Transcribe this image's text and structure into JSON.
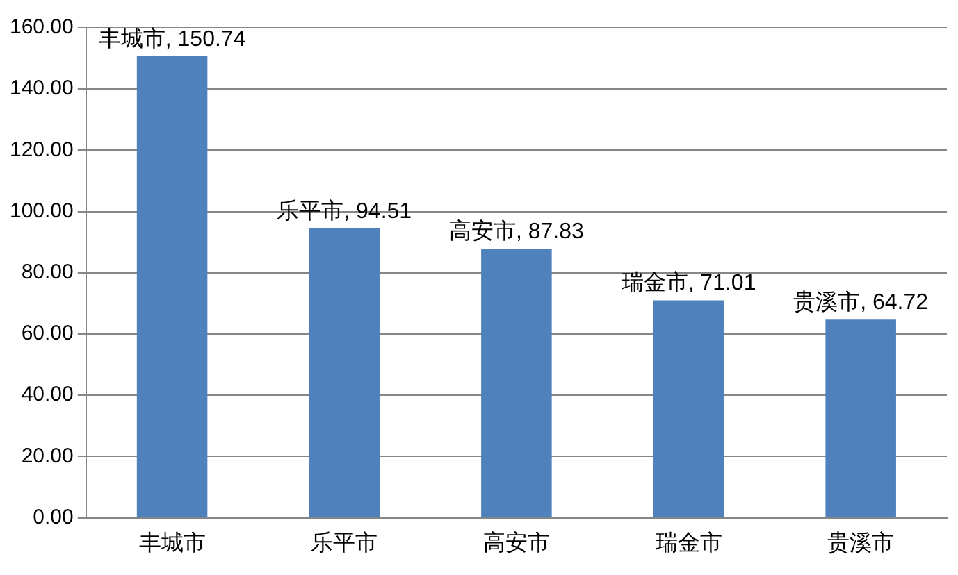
{
  "chart_data": {
    "type": "bar",
    "categories": [
      "丰城市",
      "乐平市",
      "高安市",
      "瑞金市",
      "贵溪市"
    ],
    "values": [
      150.74,
      94.51,
      87.83,
      71.01,
      64.72
    ],
    "value_labels": [
      "丰城市, 150.74",
      "乐平市, 94.51",
      "高安市, 87.83",
      "瑞金市, 71.01",
      "贵溪市, 64.72"
    ],
    "color": "#4f81bd",
    "ylim": [
      0,
      160
    ],
    "yticks": [
      {
        "value": 0,
        "label": "0.00"
      },
      {
        "value": 20,
        "label": "20.00"
      },
      {
        "value": 40,
        "label": "40.00"
      },
      {
        "value": 60,
        "label": "60.00"
      },
      {
        "value": 80,
        "label": "80.00"
      },
      {
        "value": 100,
        "label": "100.00"
      },
      {
        "value": 120,
        "label": "120.00"
      },
      {
        "value": 140,
        "label": "140.00"
      },
      {
        "value": 160,
        "label": "160.00"
      }
    ],
    "grid": "y",
    "legend": false
  }
}
